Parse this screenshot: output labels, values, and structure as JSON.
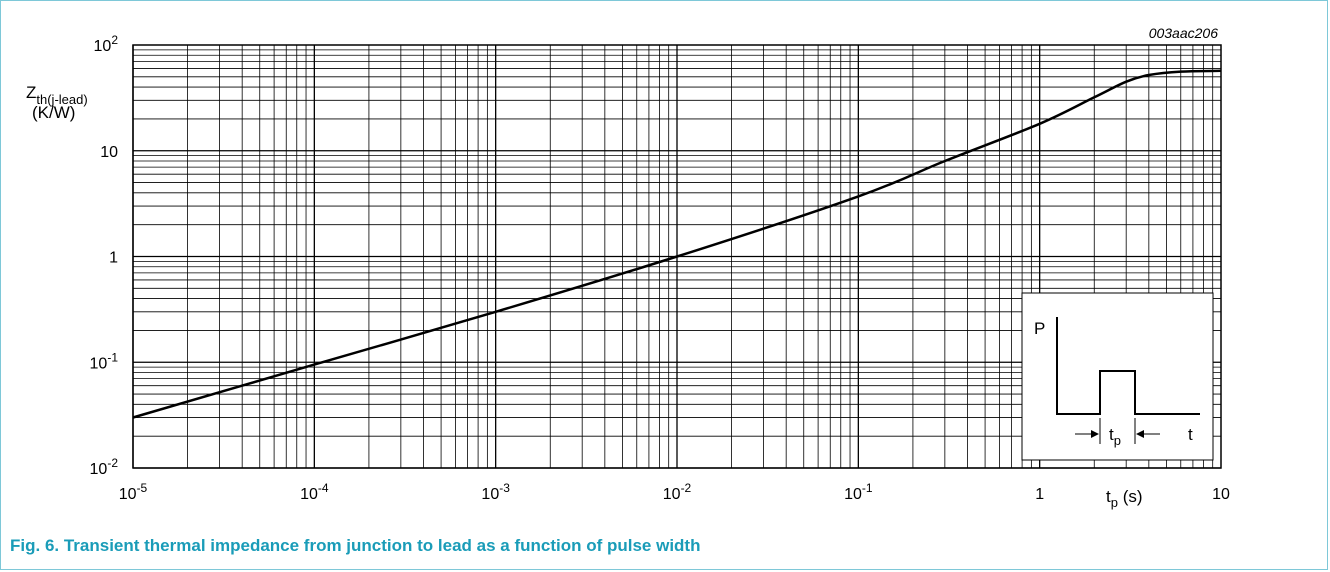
{
  "chart_data": {
    "type": "line",
    "code": "003aac206",
    "x_scale": "log",
    "y_scale": "log",
    "xlim": [
      1e-05,
      10
    ],
    "ylim": [
      0.01,
      100
    ],
    "grid": true,
    "ylabel": {
      "main": "Z",
      "sub": "th(j-lead)",
      "unit": "(K/W)"
    },
    "xlabel": {
      "main": "t",
      "sub": "p",
      "unit": " (s)"
    },
    "x_ticks": [
      {
        "base": "10",
        "exp": "-5"
      },
      {
        "base": "10",
        "exp": "-4"
      },
      {
        "base": "10",
        "exp": "-3"
      },
      {
        "base": "10",
        "exp": "-2"
      },
      {
        "base": "10",
        "exp": "-1"
      },
      {
        "base": "1",
        "exp": ""
      },
      {
        "base": "10",
        "exp": ""
      }
    ],
    "y_ticks": [
      {
        "base": "10",
        "exp": "-2"
      },
      {
        "base": "10",
        "exp": "-1"
      },
      {
        "base": "1",
        "exp": ""
      },
      {
        "base": "10",
        "exp": ""
      },
      {
        "base": "10",
        "exp": "2"
      }
    ],
    "series": [
      {
        "x": [
          1e-05,
          0.0001,
          0.001,
          0.01,
          0.1,
          0.3,
          1,
          2,
          3,
          4,
          6,
          10
        ],
        "y": [
          0.03,
          0.095,
          0.3,
          1,
          3.7,
          8,
          18,
          32,
          45,
          52,
          56,
          57
        ]
      }
    ],
    "inset": {
      "p_label": "P",
      "t_label": "t",
      "tp_main": "t",
      "tp_sub": "p"
    }
  },
  "caption": "Fig. 6. Transient thermal impedance from junction to lead as a function of pulse width"
}
